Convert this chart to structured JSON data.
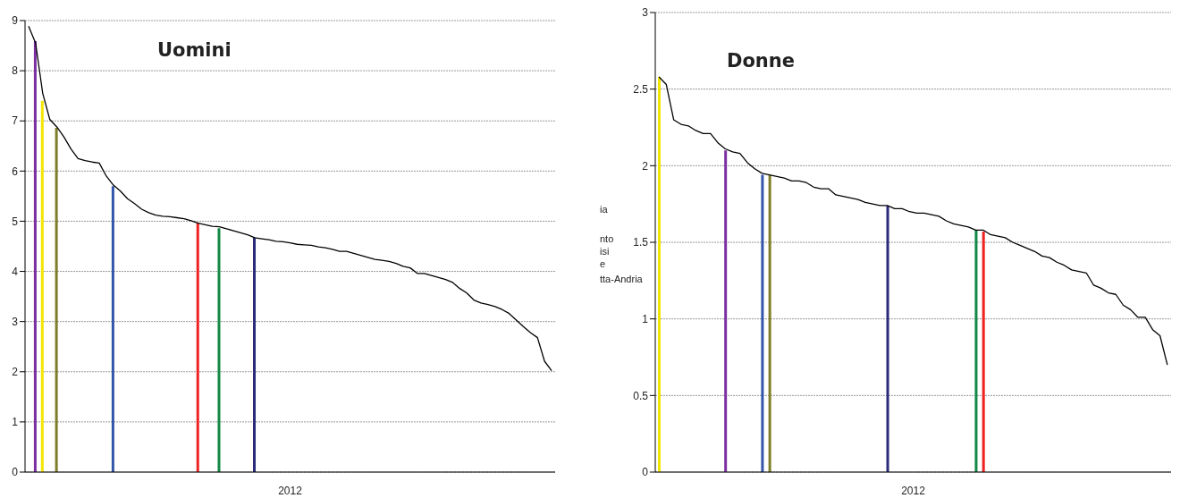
{
  "chart_data": [
    {
      "type": "line",
      "title": "Uomini",
      "xlabel": "2012",
      "categories": [
        null,
        null,
        null,
        null,
        null,
        null,
        null,
        null,
        null,
        null,
        null,
        null,
        null,
        null,
        null,
        null,
        null,
        null,
        null,
        null,
        null,
        null,
        null,
        null,
        null,
        null,
        null,
        null,
        null,
        null,
        null,
        null,
        null,
        null,
        null,
        null,
        null,
        null,
        null,
        null,
        null,
        null,
        null,
        null,
        null,
        null,
        null,
        null,
        null,
        null,
        null,
        null,
        null,
        null,
        null,
        null,
        null,
        null,
        null,
        null,
        null,
        null,
        null,
        null,
        null,
        null,
        null,
        null,
        null,
        null,
        null,
        null,
        null,
        null,
        null
      ],
      "ylim": [
        0,
        9
      ],
      "yticks": [
        0,
        1,
        2,
        3,
        4,
        5,
        6,
        7,
        8,
        9
      ],
      "grid": "y",
      "series": [
        {
          "color": "#000000",
          "values": [
            8.89,
            8.55,
            7.55,
            7.03,
            6.88,
            6.68,
            6.44,
            6.25,
            6.21,
            6.18,
            6.16,
            5.9,
            5.72,
            5.6,
            5.45,
            5.35,
            5.24,
            5.17,
            5.12,
            5.1,
            5.09,
            5.07,
            5.05,
            5.01,
            4.96,
            4.93,
            4.9,
            4.89,
            4.85,
            4.81,
            4.77,
            4.73,
            4.67,
            4.65,
            4.63,
            4.6,
            4.59,
            4.57,
            4.54,
            4.53,
            4.52,
            4.49,
            4.47,
            4.44,
            4.4,
            4.4,
            4.36,
            4.32,
            4.28,
            4.24,
            4.22,
            4.2,
            4.16,
            4.1,
            4.07,
            3.96,
            3.96,
            3.92,
            3.88,
            3.84,
            3.78,
            3.66,
            3.57,
            3.43,
            3.37,
            3.34,
            3.3,
            3.24,
            3.16,
            3.03,
            2.9,
            2.78,
            2.68,
            2.21,
            2.02
          ]
        },
        {
          "type": "bar",
          "values": [
            null,
            8.59,
            7.4,
            null,
            6.86,
            null,
            null,
            null,
            null,
            null,
            null,
            null,
            5.7,
            null,
            null,
            null,
            null,
            null,
            null,
            null,
            null,
            null,
            null,
            null,
            4.97,
            null,
            null,
            4.86,
            null,
            null,
            null,
            null,
            4.67,
            null,
            null,
            null,
            null,
            null,
            null,
            null,
            null,
            null,
            null,
            null,
            null,
            null,
            null,
            null,
            null,
            null,
            null,
            null,
            null,
            null,
            null,
            null,
            null,
            null,
            null,
            null,
            null,
            null,
            null,
            null,
            null,
            null,
            null,
            null,
            null,
            null,
            null,
            null,
            null,
            null,
            null
          ],
          "colors": [
            null,
            "#7b2fa0",
            "#f2e600",
            null,
            "#7d7d2a",
            null,
            null,
            null,
            null,
            null,
            null,
            null,
            "#3355aa",
            null,
            null,
            null,
            null,
            null,
            null,
            null,
            null,
            null,
            null,
            null,
            "#ee2222",
            null,
            null,
            "#118844",
            null,
            null,
            null,
            null,
            "#2a2a7a",
            null,
            null,
            null,
            null,
            null,
            null,
            null,
            null,
            null,
            null,
            null,
            null,
            null,
            null,
            null,
            null,
            null,
            null,
            null,
            null,
            null,
            null,
            null,
            null,
            null,
            null,
            null,
            null,
            null,
            null,
            null,
            null,
            null,
            null,
            null,
            null,
            null,
            null,
            null,
            null,
            null,
            null
          ]
        }
      ]
    },
    {
      "type": "line",
      "title": "Donne",
      "xlabel": "2012",
      "annotations": [
        "ia",
        "nto",
        "isi",
        "e",
        "tta-Andria"
      ],
      "categories": [
        null,
        null,
        null,
        null,
        null,
        null,
        null,
        null,
        null,
        null,
        null,
        null,
        null,
        null,
        null,
        null,
        null,
        null,
        null,
        null,
        null,
        null,
        null,
        null,
        null,
        null,
        null,
        null,
        null,
        null,
        null,
        null,
        null,
        null,
        null,
        null,
        null,
        null,
        null,
        null,
        null,
        null,
        null,
        null,
        null,
        null,
        null,
        null,
        null,
        null,
        null,
        null,
        null,
        null,
        null,
        null,
        null,
        null,
        null,
        null,
        null,
        null,
        null,
        null,
        null,
        null,
        null,
        null,
        null,
        null
      ],
      "ylim": [
        0,
        3
      ],
      "yticks": [
        0,
        0.5,
        1,
        1.5,
        2,
        2.5,
        3
      ],
      "grid": "y",
      "series": [
        {
          "color": "#000000",
          "values": [
            2.58,
            2.53,
            2.3,
            2.27,
            2.26,
            2.23,
            2.21,
            2.21,
            2.15,
            2.11,
            2.09,
            2.08,
            2.02,
            1.98,
            1.95,
            1.94,
            1.93,
            1.92,
            1.9,
            1.9,
            1.89,
            1.86,
            1.85,
            1.85,
            1.81,
            1.8,
            1.79,
            1.78,
            1.76,
            1.75,
            1.74,
            1.74,
            1.72,
            1.72,
            1.7,
            1.69,
            1.69,
            1.68,
            1.67,
            1.64,
            1.62,
            1.61,
            1.6,
            1.58,
            1.58,
            1.55,
            1.54,
            1.53,
            1.5,
            1.48,
            1.46,
            1.44,
            1.41,
            1.4,
            1.37,
            1.35,
            1.32,
            1.31,
            1.3,
            1.22,
            1.2,
            1.17,
            1.16,
            1.09,
            1.06,
            1.01,
            1.01,
            0.93,
            0.89,
            0.7
          ]
        },
        {
          "type": "bar",
          "values": [
            2.58,
            null,
            null,
            null,
            null,
            null,
            null,
            null,
            null,
            2.1,
            null,
            null,
            null,
            null,
            1.94,
            1.94,
            null,
            null,
            null,
            null,
            null,
            null,
            null,
            null,
            null,
            null,
            null,
            null,
            null,
            null,
            null,
            1.74,
            null,
            null,
            null,
            null,
            null,
            null,
            null,
            null,
            null,
            null,
            null,
            1.58,
            1.57,
            null,
            null,
            null,
            null,
            null,
            null,
            null,
            null,
            null,
            null,
            null,
            null,
            null,
            null,
            null,
            null,
            null,
            null,
            null,
            null,
            null,
            null,
            null,
            null,
            null
          ],
          "colors": [
            "#f2e600",
            null,
            null,
            null,
            null,
            null,
            null,
            null,
            null,
            "#7b2fa0",
            null,
            null,
            null,
            null,
            "#3355aa",
            "#7d7d2a",
            null,
            null,
            null,
            null,
            null,
            null,
            null,
            null,
            null,
            null,
            null,
            null,
            null,
            null,
            null,
            "#2a2a7a",
            null,
            null,
            null,
            null,
            null,
            null,
            null,
            null,
            null,
            null,
            null,
            "#118844",
            "#ee2222",
            null,
            null,
            null,
            null,
            null,
            null,
            null,
            null,
            null,
            null,
            null,
            null,
            null,
            null,
            null,
            null,
            null,
            null,
            null,
            null,
            null,
            null,
            null,
            null,
            null
          ]
        }
      ]
    }
  ]
}
